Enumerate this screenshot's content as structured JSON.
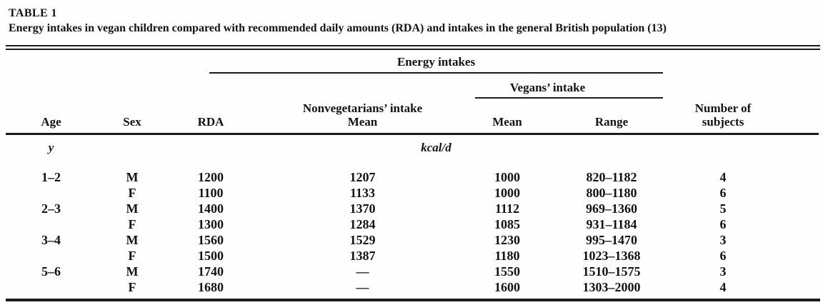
{
  "ink_color": "#1b1b1b",
  "table": {
    "label": "TABLE 1",
    "caption": "Energy intakes in vegan children compared with recommended daily amounts (RDA) and intakes in the general British population (13)",
    "header": {
      "energy_group": "Energy intakes",
      "vegans_group": "Vegans’ intake",
      "age": "Age",
      "sex": "Sex",
      "rda": "RDA",
      "nonveg_line1": "Nonvegetarians’ intake",
      "nonveg_line2": "Mean",
      "vegan_mean": "Mean",
      "vegan_range": "Range",
      "subjects_line1": "Number of",
      "subjects_line2": "subjects"
    },
    "units": {
      "age": "y",
      "energy": "kcal/d"
    },
    "rows": [
      {
        "age": "1–2",
        "sex": "M",
        "rda": "1200",
        "nonveg_mean": "1207",
        "vegan_mean": "1000",
        "vegan_range": "820–1182",
        "n": "4"
      },
      {
        "age": "",
        "sex": "F",
        "rda": "1100",
        "nonveg_mean": "1133",
        "vegan_mean": "1000",
        "vegan_range": "800–1180",
        "n": "6"
      },
      {
        "age": "2–3",
        "sex": "M",
        "rda": "1400",
        "nonveg_mean": "1370",
        "vegan_mean": "1112",
        "vegan_range": "969–1360",
        "n": "5"
      },
      {
        "age": "",
        "sex": "F",
        "rda": "1300",
        "nonveg_mean": "1284",
        "vegan_mean": "1085",
        "vegan_range": "931–1184",
        "n": "6"
      },
      {
        "age": "3–4",
        "sex": "M",
        "rda": "1560",
        "nonveg_mean": "1529",
        "vegan_mean": "1230",
        "vegan_range": "995–1470",
        "n": "3"
      },
      {
        "age": "",
        "sex": "F",
        "rda": "1500",
        "nonveg_mean": "1387",
        "vegan_mean": "1180",
        "vegan_range": "1023–1368",
        "n": "6"
      },
      {
        "age": "5–6",
        "sex": "M",
        "rda": "1740",
        "nonveg_mean": "—",
        "vegan_mean": "1550",
        "vegan_range": "1510–1575",
        "n": "3"
      },
      {
        "age": "",
        "sex": "F",
        "rda": "1680",
        "nonveg_mean": "—",
        "vegan_mean": "1600",
        "vegan_range": "1303–2000",
        "n": "4"
      }
    ]
  }
}
